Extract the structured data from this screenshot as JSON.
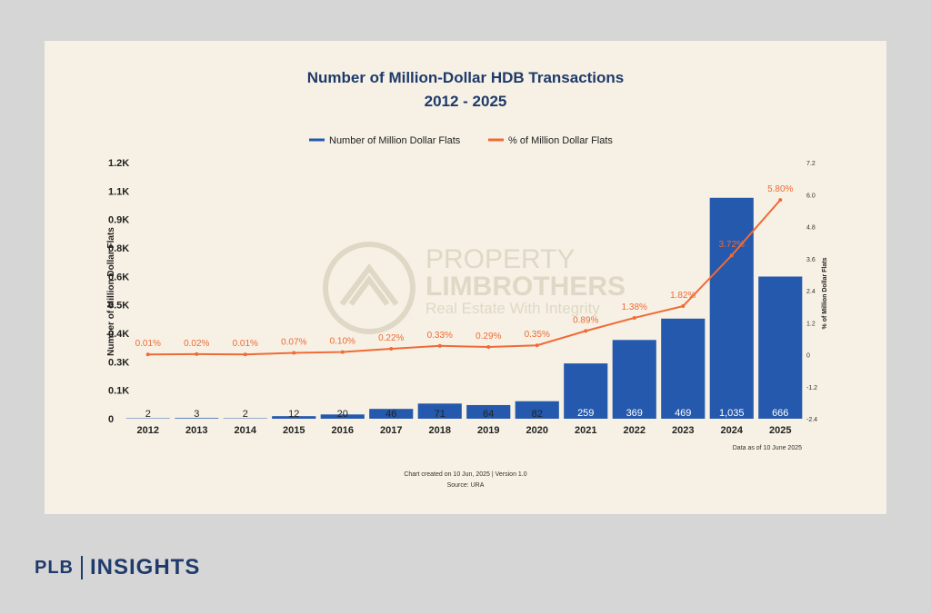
{
  "brand": {
    "left": "PLB",
    "right": "INSIGHTS"
  },
  "colors": {
    "bar": "#2559ad",
    "line": "#f06a35",
    "title": "#1f3a6b",
    "panel": "#f6f1e4"
  },
  "watermark": {
    "line1": "PROPERTY",
    "line2": "LIMBROTHERS",
    "line3": "Real Estate With Integrity"
  },
  "chart_data": {
    "type": "bar",
    "title": "Number of Million-Dollar HDB Transactions",
    "subtitle": "2012 - 2025",
    "categories": [
      "2012",
      "2013",
      "2014",
      "2015",
      "2016",
      "2017",
      "2018",
      "2019",
      "2020",
      "2021",
      "2022",
      "2023",
      "2024",
      "2025"
    ],
    "series": [
      {
        "name": "Number of Million Dollar Flats",
        "type": "bar",
        "values": [
          2,
          3,
          2,
          12,
          20,
          46,
          71,
          64,
          82,
          259,
          369,
          469,
          1035,
          666
        ],
        "labels": [
          "2",
          "3",
          "2",
          "12",
          "20",
          "46",
          "71",
          "64",
          "82",
          "259",
          "369",
          "469",
          "1,035",
          "666"
        ]
      },
      {
        "name": "% of Million Dollar Flats",
        "type": "line",
        "values": [
          0.01,
          0.02,
          0.01,
          0.07,
          0.1,
          0.22,
          0.33,
          0.29,
          0.35,
          0.89,
          1.38,
          1.82,
          3.72,
          5.8
        ],
        "labels": [
          "0.01%",
          "0.02%",
          "0.01%",
          "0.07%",
          "0.10%",
          "0.22%",
          "0.33%",
          "0.29%",
          "0.35%",
          "0.89%",
          "1.38%",
          "1.82%",
          "3.72%",
          "5.80%"
        ]
      }
    ],
    "ylabel": "Number of Million Dollar Flats",
    "y2label": "% of Million Dollar Flats",
    "y_ticks": [
      "0",
      "0.1K",
      "0.3K",
      "0.4K",
      "0.5K",
      "0.6K",
      "0.8K",
      "0.9K",
      "1.1K",
      "1.2K"
    ],
    "ylim": [
      0,
      1200
    ],
    "y2_ticks": [
      "-2.4",
      "-1.2",
      "0",
      "1.2",
      "2.4",
      "3.6",
      "4.8",
      "6.0",
      "7.2"
    ],
    "y2lim": [
      -2.4,
      7.2
    ],
    "legend_position": "top",
    "note": "Data as of 10 June 2025",
    "footer_line1": "Chart created on 10 Jun, 2025 | Version 1.0",
    "footer_line2": "Source: URA"
  }
}
